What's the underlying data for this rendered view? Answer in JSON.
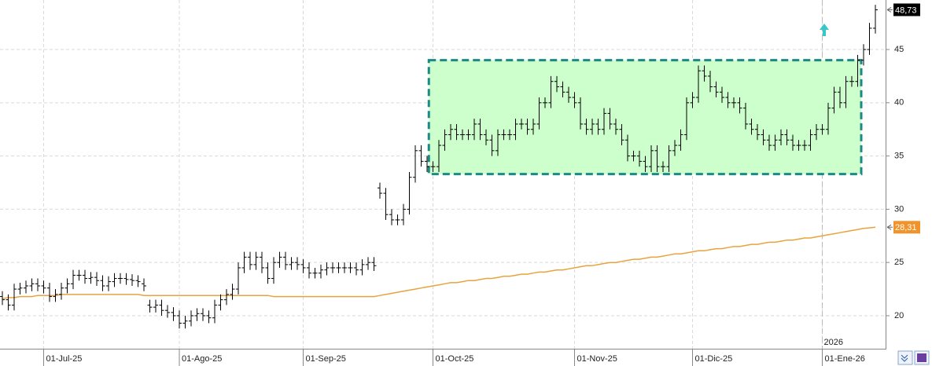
{
  "chart_data": {
    "type": "ohlc",
    "xlim": [
      -0.4,
      149.6
    ],
    "ylim": [
      16.9,
      49.65
    ],
    "yticks": [
      20,
      25,
      30,
      35,
      40,
      45
    ],
    "xticks": [
      {
        "value": 7,
        "label": "01-Jul-25"
      },
      {
        "value": 30,
        "label": "01-Ago-25"
      },
      {
        "value": 51,
        "label": "01-Sep-25"
      },
      {
        "value": 73,
        "label": "01-Oct-25"
      },
      {
        "value": 97,
        "label": "01-Nov-25"
      },
      {
        "value": 117,
        "label": "01-Dic-25"
      },
      {
        "value": 139,
        "label": "01-Ene-26"
      }
    ],
    "year_divider": {
      "value": 139,
      "label": "2026"
    },
    "grid": true,
    "color": "#000000",
    "open": [
      21.8,
      21.5,
      21,
      22.5,
      22.6,
      22.8,
      23,
      22.8,
      22.6,
      21.8,
      22,
      22.6,
      23,
      23.8,
      23.8,
      23.5,
      23.6,
      23.3,
      22.8,
      23.2,
      23.5,
      23.5,
      23.4,
      23.3,
      23,
      21,
      20.8,
      21,
      20.5,
      20.3,
      20,
      19.3,
      19.5,
      20,
      20.2,
      20,
      19.8,
      21,
      21.5,
      22,
      22.5,
      24.5,
      25.5,
      24.8,
      25.5,
      24.5,
      23.5,
      25,
      25.5,
      24.8,
      25,
      24.8,
      24.5,
      24,
      24,
      24.3,
      24.5,
      24.5,
      24.5,
      24.5,
      24.5,
      24.3,
      24.8,
      25,
      32,
      31.5,
      29.5,
      29,
      29,
      30,
      33,
      35.5,
      34.5,
      34,
      34,
      36,
      37,
      37.5,
      37,
      37,
      37,
      38,
      37,
      36.5,
      35.5,
      37,
      37,
      37,
      38,
      38,
      37.5,
      38,
      40,
      40,
      42,
      41.5,
      41,
      40.5,
      40,
      38,
      37.5,
      38,
      37.5,
      39,
      38,
      37.5,
      36.5,
      35,
      35,
      34.5,
      34,
      35.5,
      34,
      34,
      35.5,
      36,
      37,
      40,
      40.5,
      43,
      42.5,
      41.5,
      41,
      40.5,
      40,
      40,
      39.5,
      38,
      37.5,
      37,
      36.5,
      36,
      36.5,
      37,
      36.5,
      36,
      36,
      36,
      37,
      37.5,
      37.5,
      39.5,
      41,
      40,
      42,
      42,
      44,
      45,
      47
    ],
    "high": [
      22.3,
      22,
      23,
      23.1,
      23.3,
      23.5,
      23.5,
      23.3,
      23.1,
      22.5,
      23.1,
      23.5,
      24.3,
      24.3,
      24.3,
      24.1,
      24.1,
      23.8,
      23.7,
      24,
      24,
      24,
      23.9,
      23.8,
      23.5,
      21.5,
      21.5,
      21.5,
      21,
      20.8,
      20.5,
      20,
      20.5,
      20.7,
      20.7,
      20.5,
      21.5,
      22,
      22.5,
      23,
      25,
      26,
      26,
      26,
      26,
      25,
      25.5,
      26,
      26,
      25.5,
      25.5,
      25.3,
      25,
      24.5,
      24.8,
      25,
      25,
      25,
      25,
      25,
      25,
      25.3,
      25.5,
      25.5,
      32.5,
      32,
      30,
      29.5,
      30.5,
      33.5,
      36,
      36,
      35,
      34.5,
      36.5,
      37.5,
      38,
      38,
      37.5,
      37.5,
      38.5,
      38.5,
      37.5,
      37,
      37.5,
      37.5,
      37.5,
      38.5,
      38.5,
      38.5,
      38.5,
      40.5,
      40.5,
      42.5,
      42.5,
      42,
      41.5,
      41,
      40.5,
      38.5,
      38.5,
      38.5,
      39.5,
      39.5,
      38.5,
      38,
      37,
      35.5,
      35.5,
      35,
      36,
      36,
      34.5,
      36,
      36.5,
      37.5,
      40.5,
      41,
      43.5,
      43.5,
      43,
      42,
      41.5,
      41,
      40.5,
      40.5,
      40,
      38.5,
      38,
      37.5,
      37,
      37,
      37.5,
      37.5,
      37,
      36.5,
      36.5,
      37.5,
      38,
      38,
      40,
      41.5,
      41.5,
      42.5,
      42.5,
      44.5,
      45.5,
      47.5,
      49.2
    ],
    "low": [
      21,
      20.5,
      20.5,
      22,
      22.1,
      22.3,
      22.3,
      22.1,
      21.3,
      21.3,
      21.5,
      22.1,
      22.5,
      23.3,
      23,
      23,
      22.8,
      22.3,
      22.3,
      22.7,
      23,
      22.9,
      22.8,
      22.7,
      22.3,
      20.3,
      20.3,
      20,
      19.8,
      19.5,
      18.8,
      18.8,
      19,
      19.5,
      19.5,
      19.3,
      19.3,
      20.5,
      21,
      21.5,
      22,
      24,
      24.3,
      24.3,
      24,
      23,
      23,
      24.5,
      24.3,
      24.3,
      24.3,
      24,
      23.5,
      23.5,
      23.5,
      23.8,
      24,
      24,
      24,
      24,
      23.8,
      23.8,
      24.3,
      24.2,
      31,
      29,
      28.5,
      28.5,
      28.5,
      29.5,
      32.5,
      34,
      33.5,
      33.5,
      33.5,
      35.5,
      36.5,
      36.5,
      36.5,
      36.5,
      36.5,
      36.5,
      36,
      35,
      35,
      36.5,
      36.5,
      36.5,
      37.5,
      37,
      37,
      37.5,
      39.5,
      39.5,
      41,
      40.5,
      40,
      39.5,
      37.5,
      37,
      37,
      37,
      37,
      37.5,
      37,
      36,
      34.5,
      34.5,
      34,
      33.5,
      33.5,
      33.5,
      33.5,
      33.5,
      35,
      35.5,
      36.5,
      39.5,
      40,
      42,
      41,
      40.5,
      40,
      39.5,
      39.5,
      39,
      37.5,
      37,
      36.5,
      36,
      35.5,
      35.5,
      36,
      36,
      35.5,
      35.5,
      35.5,
      35.5,
      36.5,
      37,
      37,
      39,
      39.5,
      39.5,
      41.5,
      41.5,
      43.5,
      44.5,
      46.5
    ],
    "close": [
      21.5,
      21,
      22.5,
      22.6,
      22.8,
      23,
      22.8,
      22.6,
      21.8,
      22,
      22.6,
      23,
      23.8,
      23.8,
      23.5,
      23.6,
      23.3,
      22.8,
      23.2,
      23.5,
      23.5,
      23.4,
      23.3,
      23.2,
      22.8,
      20.8,
      21,
      20.5,
      20.3,
      20,
      19.3,
      19.5,
      20,
      20.2,
      20,
      19.8,
      21,
      21.5,
      22,
      22.5,
      24.5,
      25.5,
      24.8,
      25.5,
      24.5,
      23.5,
      25,
      25.5,
      24.8,
      25,
      24.8,
      24.5,
      24,
      24,
      24.3,
      24.5,
      24.5,
      24.5,
      24.5,
      24.5,
      24.3,
      24.8,
      25,
      24.7,
      31.5,
      29.5,
      29,
      29,
      30,
      33,
      35.5,
      34.5,
      34,
      34,
      36,
      37,
      37.5,
      37,
      37,
      37,
      38,
      37,
      36.5,
      35.5,
      37,
      37,
      37,
      38,
      38,
      37.5,
      38,
      40,
      40,
      42,
      41.5,
      41,
      40.5,
      40,
      38,
      37.5,
      38,
      37.5,
      39,
      38,
      37.5,
      36.5,
      35,
      35,
      34.5,
      34,
      35.5,
      34,
      34,
      35.5,
      36,
      37,
      40,
      40.5,
      43,
      42.5,
      41.5,
      41,
      40.5,
      40,
      40,
      39.5,
      38,
      37.5,
      37,
      36.5,
      36,
      36.5,
      37,
      36.5,
      36,
      36,
      36,
      37,
      37.5,
      37.5,
      39.5,
      41,
      40,
      42,
      42,
      44,
      45,
      47,
      48.73
    ],
    "moving_average": {
      "color": "#e8a33d",
      "values": [
        21.6,
        21.7,
        21.7,
        21.8,
        21.8,
        21.8,
        21.9,
        21.9,
        21.9,
        21.9,
        22,
        22,
        22,
        22,
        22,
        22,
        22,
        22,
        22,
        22,
        22,
        22,
        22,
        22,
        21.9,
        21.9,
        21.9,
        21.9,
        21.9,
        21.9,
        21.9,
        21.9,
        21.9,
        21.9,
        21.9,
        21.9,
        21.9,
        21.9,
        21.9,
        21.9,
        21.9,
        21.9,
        21.9,
        21.9,
        21.9,
        21.9,
        21.8,
        21.8,
        21.8,
        21.8,
        21.8,
        21.8,
        21.8,
        21.8,
        21.8,
        21.8,
        21.8,
        21.8,
        21.8,
        21.8,
        21.8,
        21.8,
        21.8,
        21.8,
        21.9,
        22,
        22.1,
        22.2,
        22.3,
        22.4,
        22.5,
        22.6,
        22.7,
        22.8,
        22.9,
        23,
        23.1,
        23.1,
        23.2,
        23.3,
        23.3,
        23.4,
        23.5,
        23.5,
        23.6,
        23.7,
        23.7,
        23.8,
        23.9,
        23.9,
        24,
        24.1,
        24.1,
        24.2,
        24.3,
        24.3,
        24.4,
        24.5,
        24.6,
        24.7,
        24.7,
        24.8,
        24.9,
        25,
        25,
        25.1,
        25.2,
        25.3,
        25.3,
        25.4,
        25.5,
        25.5,
        25.6,
        25.7,
        25.8,
        25.8,
        25.9,
        26,
        26.1,
        26.1,
        26.2,
        26.3,
        26.3,
        26.4,
        26.5,
        26.5,
        26.6,
        26.7,
        26.7,
        26.8,
        26.9,
        26.9,
        27,
        27.1,
        27.1,
        27.2,
        27.3,
        27.3,
        27.4,
        27.5,
        27.6,
        27.7,
        27.8,
        27.9,
        28,
        28.1,
        28.2,
        28.25,
        28.31
      ]
    },
    "axis_labels": [
      {
        "value": 48.73,
        "label": "48,73",
        "color": "#000000"
      },
      {
        "value": 28.31,
        "label": "28,31",
        "color": "#f0932b"
      }
    ],
    "box": {
      "x": [
        72.3,
        145.6
      ],
      "y": [
        33.3,
        44
      ],
      "color": "#1a8a84",
      "fill": "#ccffcc"
    }
  }
}
